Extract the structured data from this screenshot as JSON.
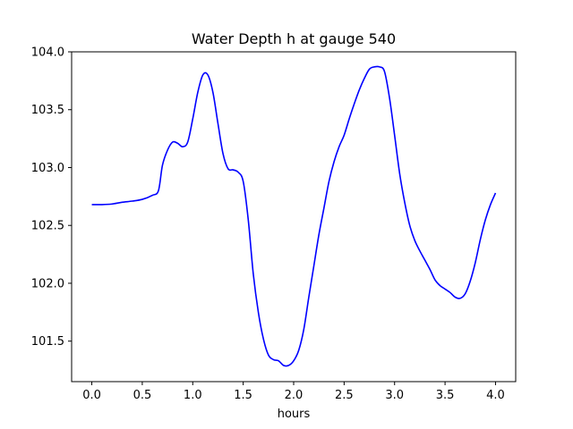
{
  "chart_data": {
    "type": "line",
    "title": "Water Depth h at gauge 540",
    "xlabel": "hours",
    "ylabel": "",
    "xlim": [
      -0.2,
      4.2
    ],
    "ylim": [
      101.15,
      104.0
    ],
    "x_ticks": [
      0.0,
      0.5,
      1.0,
      1.5,
      2.0,
      2.5,
      3.0,
      3.5,
      4.0
    ],
    "x_tick_labels": [
      "0.0",
      "0.5",
      "1.0",
      "1.5",
      "2.0",
      "2.5",
      "3.0",
      "3.5",
      "4.0"
    ],
    "y_ticks": [
      101.5,
      102.0,
      102.5,
      103.0,
      103.5,
      104.0
    ],
    "y_tick_labels": [
      "101.5",
      "102.0",
      "102.5",
      "103.0",
      "103.5",
      "104.0"
    ],
    "grid": false,
    "legend": "none",
    "series": [
      {
        "color": "#0000ff",
        "points": [
          [
            0.0,
            102.68
          ],
          [
            0.1,
            102.68
          ],
          [
            0.2,
            102.685
          ],
          [
            0.3,
            102.7
          ],
          [
            0.4,
            102.71
          ],
          [
            0.5,
            102.725
          ],
          [
            0.6,
            102.76
          ],
          [
            0.66,
            102.8
          ],
          [
            0.7,
            103.02
          ],
          [
            0.75,
            103.15
          ],
          [
            0.8,
            103.22
          ],
          [
            0.85,
            103.21
          ],
          [
            0.9,
            103.18
          ],
          [
            0.95,
            103.22
          ],
          [
            1.0,
            103.42
          ],
          [
            1.05,
            103.65
          ],
          [
            1.1,
            103.8
          ],
          [
            1.15,
            103.8
          ],
          [
            1.2,
            103.65
          ],
          [
            1.25,
            103.38
          ],
          [
            1.3,
            103.12
          ],
          [
            1.35,
            102.99
          ],
          [
            1.4,
            102.98
          ],
          [
            1.45,
            102.96
          ],
          [
            1.5,
            102.88
          ],
          [
            1.55,
            102.55
          ],
          [
            1.6,
            102.08
          ],
          [
            1.65,
            101.75
          ],
          [
            1.7,
            101.52
          ],
          [
            1.75,
            101.38
          ],
          [
            1.8,
            101.34
          ],
          [
            1.85,
            101.33
          ],
          [
            1.9,
            101.29
          ],
          [
            1.95,
            101.29
          ],
          [
            2.0,
            101.33
          ],
          [
            2.05,
            101.42
          ],
          [
            2.1,
            101.6
          ],
          [
            2.15,
            101.88
          ],
          [
            2.2,
            102.15
          ],
          [
            2.25,
            102.42
          ],
          [
            2.3,
            102.65
          ],
          [
            2.35,
            102.88
          ],
          [
            2.4,
            103.05
          ],
          [
            2.45,
            103.18
          ],
          [
            2.5,
            103.28
          ],
          [
            2.55,
            103.42
          ],
          [
            2.6,
            103.55
          ],
          [
            2.65,
            103.67
          ],
          [
            2.7,
            103.77
          ],
          [
            2.75,
            103.85
          ],
          [
            2.8,
            103.87
          ],
          [
            2.85,
            103.87
          ],
          [
            2.9,
            103.83
          ],
          [
            2.95,
            103.6
          ],
          [
            3.0,
            103.28
          ],
          [
            3.05,
            102.95
          ],
          [
            3.1,
            102.7
          ],
          [
            3.15,
            102.5
          ],
          [
            3.2,
            102.37
          ],
          [
            3.25,
            102.28
          ],
          [
            3.3,
            102.2
          ],
          [
            3.35,
            102.12
          ],
          [
            3.4,
            102.03
          ],
          [
            3.45,
            101.98
          ],
          [
            3.5,
            101.95
          ],
          [
            3.55,
            101.92
          ],
          [
            3.6,
            101.88
          ],
          [
            3.65,
            101.87
          ],
          [
            3.7,
            101.91
          ],
          [
            3.75,
            102.02
          ],
          [
            3.8,
            102.18
          ],
          [
            3.85,
            102.38
          ],
          [
            3.9,
            102.55
          ],
          [
            3.95,
            102.68
          ],
          [
            4.0,
            102.78
          ]
        ]
      }
    ]
  }
}
